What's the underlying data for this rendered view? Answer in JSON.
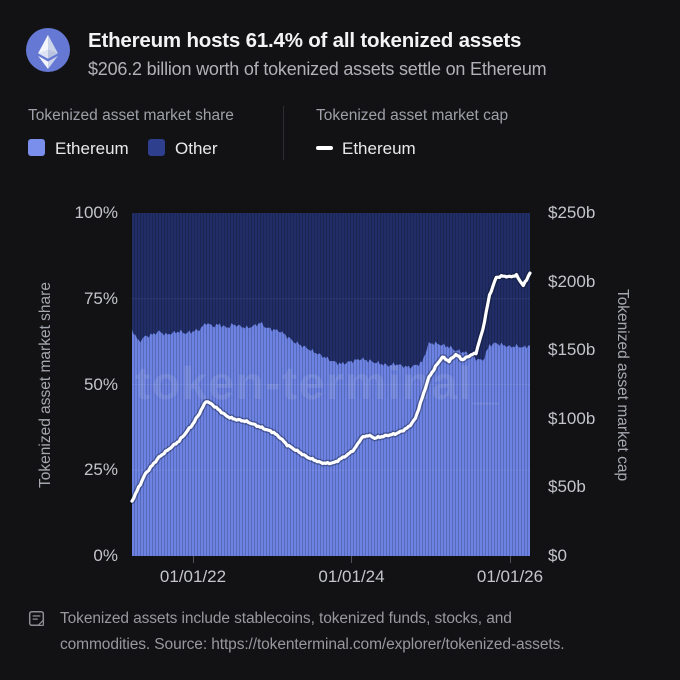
{
  "page": {
    "bg": "#121214"
  },
  "header": {
    "logo_icon": "ethereum-logo",
    "logo_color": "#6478d4",
    "title": "Ethereum hosts 61.4% of all tokenized assets",
    "subtitle": "$206.2 billion worth of tokenized assets settle on Ethereum"
  },
  "legend": {
    "share_group": {
      "heading": "Tokenized asset market share",
      "items": [
        {
          "label": "Ethereum",
          "color": "#7a8eec",
          "swatch": "square"
        },
        {
          "label": "Other",
          "color": "#2e3f8e",
          "swatch": "square"
        }
      ]
    },
    "cap_group": {
      "heading": "Tokenized asset market cap",
      "items": [
        {
          "label": "Ethereum",
          "color": "#ffffff",
          "swatch": "line"
        }
      ]
    }
  },
  "chart_data": {
    "type": "area",
    "subtype": "100%-stacked area with overlay line",
    "x": [
      "2021-04",
      "2021-05",
      "2021-06",
      "2021-07",
      "2021-08",
      "2021-09",
      "2021-10",
      "2021-11",
      "2021-12",
      "2022-01",
      "2022-02",
      "2022-03",
      "2022-04",
      "2022-05",
      "2022-06",
      "2022-07",
      "2022-08",
      "2022-09",
      "2022-10",
      "2022-11",
      "2022-12",
      "2023-01",
      "2023-02",
      "2023-03",
      "2023-04",
      "2023-05",
      "2023-06",
      "2023-07",
      "2023-08",
      "2023-09",
      "2023-10",
      "2023-11",
      "2023-12",
      "2024-01",
      "2024-02",
      "2024-03",
      "2024-04",
      "2024-05",
      "2024-06",
      "2024-07",
      "2024-08",
      "2024-09",
      "2024-10",
      "2024-11",
      "2024-12",
      "2025-01",
      "2025-02",
      "2025-03",
      "2025-04",
      "2025-05",
      "2025-06",
      "2025-07",
      "2025-08",
      "2025-09",
      "2025-10",
      "2025-11",
      "2025-12",
      "2026-01",
      "2026-02",
      "2026-03"
    ],
    "series": [
      {
        "name": "Ethereum",
        "group": "market_share",
        "axis": "left",
        "unit": "%",
        "values": [
          66,
          62.5,
          64,
          64.5,
          65.5,
          64.5,
          65,
          65.5,
          65,
          65.5,
          66,
          68,
          67,
          67.5,
          66.5,
          67.5,
          67,
          66.5,
          67,
          68,
          66.5,
          66,
          65.5,
          64,
          62.5,
          61.5,
          60.5,
          59.5,
          58.5,
          57.5,
          56.5,
          56,
          56.5,
          57,
          57.5,
          57,
          56.5,
          56,
          55.5,
          56,
          55.5,
          55,
          55.5,
          56.5,
          62,
          62,
          61.5,
          61,
          60,
          59.5,
          59,
          57.5,
          57,
          61.5,
          62,
          61.5,
          61,
          61.2,
          60.8,
          61.4
        ]
      },
      {
        "name": "Other",
        "group": "market_share",
        "axis": "left",
        "unit": "%",
        "derived": "stacked complement: 100 - Ethereum share"
      },
      {
        "name": "Ethereum",
        "group": "market_cap",
        "axis": "right",
        "unit": "$b",
        "values": [
          40,
          50,
          60,
          66,
          72,
          76,
          80,
          84,
          90,
          96,
          104,
          113,
          110,
          106,
          102,
          100,
          99,
          98,
          96,
          94,
          92,
          90,
          86,
          81,
          78,
          75,
          72,
          70,
          68,
          67.5,
          68,
          71,
          74,
          78,
          86,
          88,
          86,
          87,
          88,
          89,
          91,
          94,
          100,
          115,
          130,
          138,
          145,
          142,
          147,
          143,
          146,
          148,
          165,
          190,
          203,
          204,
          203.5,
          204.5,
          197,
          206.2
        ]
      }
    ],
    "left_axis": {
      "label": "Tokenized asset market share",
      "range": [
        0,
        100
      ],
      "ticks": [
        "100%",
        "75%",
        "50%",
        "25%",
        "0%"
      ]
    },
    "right_axis": {
      "label": "Tokenized asset market cap",
      "range": [
        0,
        250
      ],
      "ticks": [
        "$250b",
        "$200b",
        "$150b",
        "$100b",
        "$50b",
        "$0"
      ]
    },
    "x_ticks": [
      "01/01/22",
      "01/01/24",
      "01/01/26"
    ],
    "grid": "horizontal, faint, at 25/50/75%",
    "legend_position": "top-left above plot",
    "watermark": "token-terminal_",
    "colors": {
      "ethereum_area": "#6d83e3",
      "other_area": "#202d66",
      "cap_line": "#ffffff"
    }
  },
  "footer": {
    "icon": "note-icon",
    "text": "Tokenized assets include stablecoins, tokenized funds, stocks, and commodities. Source: https://tokenterminal.com/explorer/tokenized-assets."
  }
}
